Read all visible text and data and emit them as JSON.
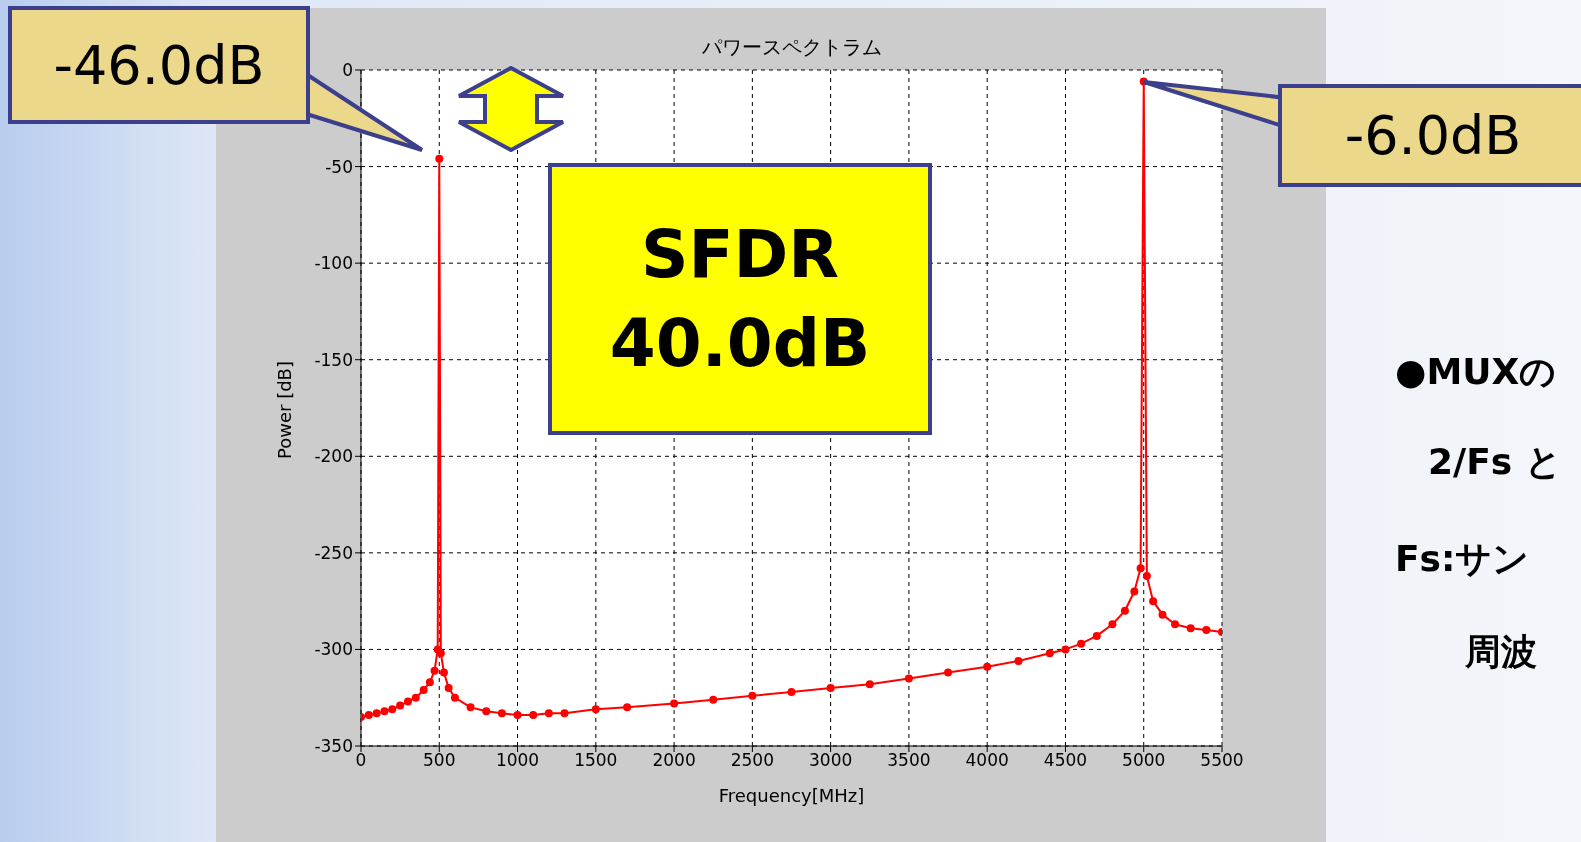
{
  "chart_data": {
    "type": "line",
    "title": "パワースペクトラム",
    "xlabel": "Frequency[MHz]",
    "ylabel": "Power [dB]",
    "x": [
      0,
      50,
      100,
      150,
      200,
      250,
      300,
      350,
      400,
      440,
      470,
      490,
      500,
      510,
      530,
      560,
      600,
      700,
      800,
      900,
      1000,
      1100,
      1200,
      1300,
      1500,
      1700,
      2000,
      2250,
      2500,
      2750,
      3000,
      3250,
      3500,
      3750,
      4000,
      4200,
      4400,
      4500,
      4600,
      4700,
      4800,
      4880,
      4940,
      4980,
      5000,
      5020,
      5060,
      5120,
      5200,
      5300,
      5400,
      5500
    ],
    "series": [
      {
        "color": "#ff0000",
        "values": [
          -335,
          -334,
          -333,
          -332,
          -331,
          -329,
          -327,
          -325,
          -321,
          -317,
          -311,
          -300,
          -46,
          -302,
          -312,
          -320,
          -325,
          -330,
          -332,
          -333,
          -334,
          -334,
          -333,
          -333,
          -331,
          -330,
          -328,
          -326,
          -324,
          -322,
          -320,
          -318,
          -315,
          -312,
          -309,
          -306,
          -302,
          -300,
          -297,
          -293,
          -287,
          -280,
          -270,
          -258,
          -6,
          -262,
          -275,
          -282,
          -287,
          -289,
          -290,
          -291
        ]
      }
    ],
    "xlim": [
      0,
      5500
    ],
    "xticks": [
      0,
      500,
      1000,
      1500,
      2000,
      2500,
      3000,
      3500,
      4000,
      4500,
      5000,
      5500
    ],
    "ylim": [
      -350,
      0
    ],
    "yticks": [
      -350,
      -300,
      -250,
      -200,
      -150,
      -100,
      -50,
      0
    ],
    "grid": true,
    "marker": "circle",
    "line_style": "solid",
    "annotations": [
      "-46.0dB",
      {
        "text": "-6.0dB",
        "x": 5000,
        "y": -6
      },
      "SFDR\n40.0dB",
      "●MUXの",
      "2/Fs と",
      "Fs:サン",
      "周波"
    ]
  }
}
